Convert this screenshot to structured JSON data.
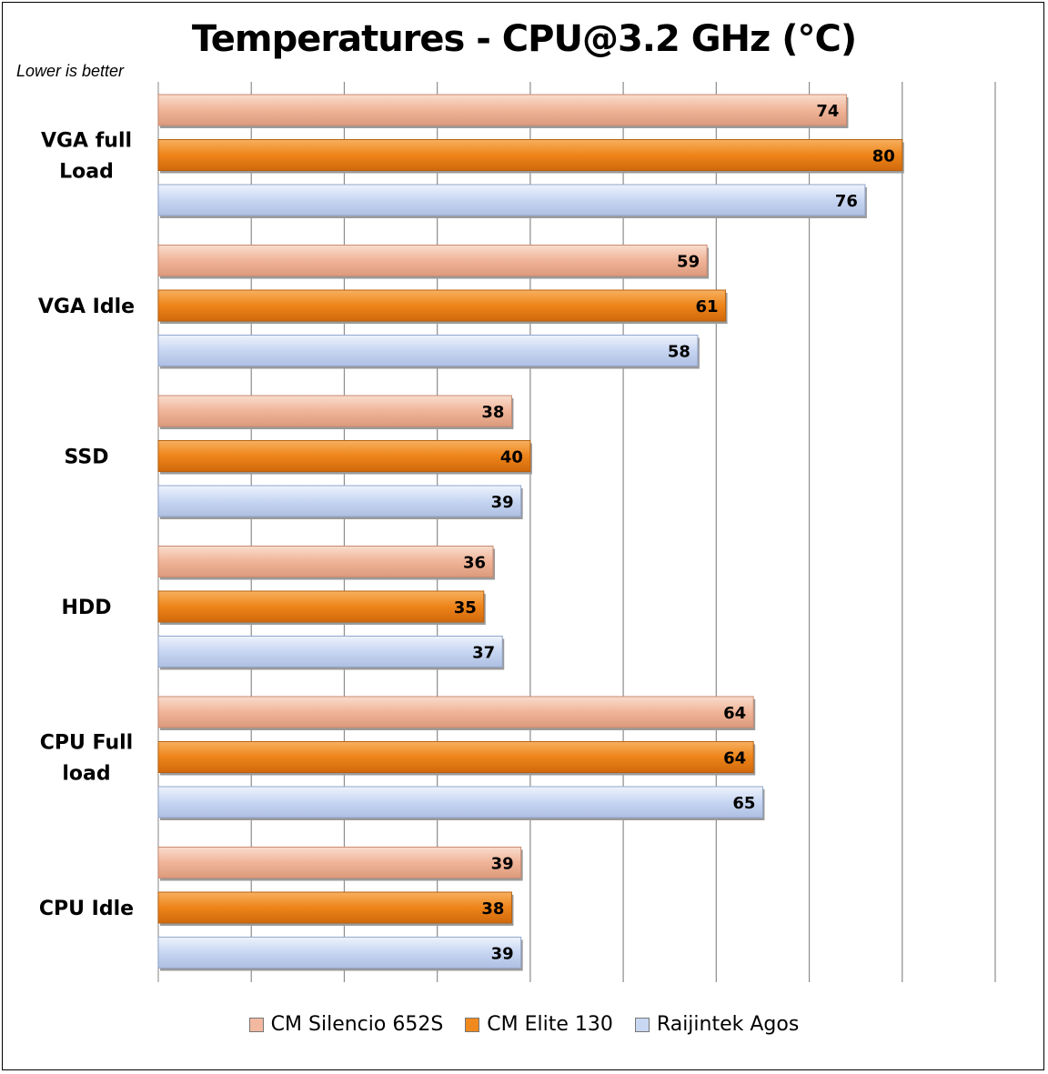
{
  "chart_data": {
    "type": "bar",
    "orientation": "horizontal",
    "title": "Temperatures - CPU@3.2 GHz (°C)",
    "subtitle": "Lower is better",
    "categories": [
      "VGA full Load",
      "VGA Idle",
      "SSD",
      "HDD",
      "CPU Full load",
      "CPU Idle"
    ],
    "category_lines": [
      [
        "VGA full",
        "Load"
      ],
      [
        "VGA Idle"
      ],
      [
        "SSD"
      ],
      [
        "HDD"
      ],
      [
        "CPU Full",
        "load"
      ],
      [
        "CPU Idle"
      ]
    ],
    "series": [
      {
        "name": "CM Silencio 652S",
        "color": "#f2b9a0",
        "values": [
          74,
          59,
          38,
          36,
          64,
          39
        ]
      },
      {
        "name": "CM Elite 130",
        "color": "#f08a1e",
        "values": [
          80,
          61,
          40,
          35,
          64,
          38
        ]
      },
      {
        "name": "Raijintek Agos",
        "color": "#c9d8f2",
        "values": [
          76,
          58,
          39,
          37,
          65,
          39
        ]
      }
    ],
    "xlim": [
      0,
      90
    ],
    "grid": true,
    "legend_position": "bottom",
    "data_labels": true
  }
}
